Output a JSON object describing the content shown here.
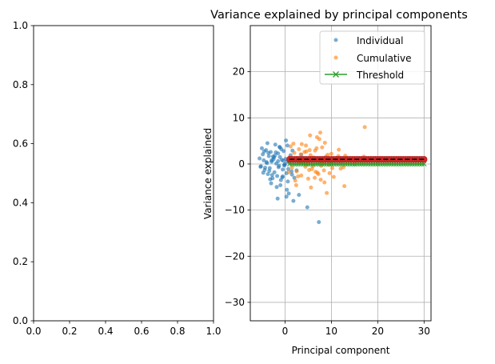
{
  "left_axes": {
    "xlim": [
      0,
      1
    ],
    "ylim": [
      0,
      1
    ],
    "x_ticks": [
      0.0,
      0.2,
      0.4,
      0.6,
      0.8,
      1.0
    ],
    "y_ticks": [
      0.0,
      0.2,
      0.4,
      0.6,
      0.8,
      1.0
    ],
    "x_tick_labels": [
      "0.0",
      "0.2",
      "0.4",
      "0.6",
      "0.8",
      "1.0"
    ],
    "y_tick_labels": [
      "0.0",
      "0.2",
      "0.4",
      "0.6",
      "0.8",
      "1.0"
    ]
  },
  "chart_data": {
    "type": "scatter",
    "title": "Variance explained by principal components",
    "xlabel": "Principal component",
    "ylabel": "Variance explained",
    "xlim": [
      -7.5,
      31.5
    ],
    "ylim": [
      -34,
      30
    ],
    "grid": true,
    "legend_position": "top-right",
    "x_ticks": [
      0,
      10,
      20,
      30
    ],
    "y_ticks": [
      -30,
      -20,
      -10,
      0,
      10,
      20
    ],
    "x_tick_labels": [
      "0",
      "10",
      "20",
      "30"
    ],
    "y_tick_labels": [
      "−30",
      "−20",
      "−10",
      "0",
      "10",
      "20"
    ],
    "series": [
      {
        "name": "Individual",
        "color": "#1f77b4",
        "marker": "dot",
        "x": [
          -5.5,
          -5.2,
          -4.8,
          -4.6,
          -4.4,
          -4.1,
          -3.9,
          -3.7,
          -3.5,
          -3.3,
          -3.1,
          -2.9,
          -2.7,
          -2.5,
          -2.3,
          -2.1,
          -1.9,
          -1.7,
          -1.5,
          -1.3,
          -1.1,
          -0.9,
          -0.7,
          -0.5,
          -0.3,
          -0.1,
          0.1,
          0.3,
          0.5,
          0.7,
          0.9,
          -5.0,
          -4.3,
          -3.6,
          -3.0,
          -2.4,
          -1.8,
          -1.2,
          -0.6,
          0.0,
          0.6,
          1.2,
          -4.7,
          -3.8,
          -2.8,
          -1.6,
          -0.4,
          0.8,
          1.6,
          -4.0,
          -3.2,
          -2.2,
          -1.0,
          0.2,
          1.4,
          -2.0,
          -1.4,
          -0.8,
          0.4,
          1.0,
          1.8,
          2.2,
          2.5,
          3.0,
          3.5,
          -1.5,
          -0.5,
          0.5,
          2.0,
          4.8,
          7.3,
          -2.6,
          -3.4,
          -4.5,
          -5.3,
          -1.1,
          0.3,
          -0.2,
          -2.9,
          1.5,
          2.6
        ],
        "y": [
          1.2,
          -0.5,
          2.1,
          0.8,
          -1.3,
          3.0,
          0.2,
          -2.2,
          1.7,
          -0.9,
          2.6,
          0.5,
          -3.1,
          1.0,
          -1.8,
          4.2,
          0.1,
          -2.6,
          2.3,
          -0.4,
          1.5,
          -3.5,
          0.9,
          -1.2,
          2.8,
          -0.2,
          1.1,
          -2.0,
          0.6,
          -1.1,
          0.3,
          3.4,
          -0.8,
          2.4,
          -4.2,
          1.4,
          -5.0,
          3.7,
          -2.9,
          0.0,
          -3.8,
          1.9,
          -1.9,
          4.5,
          -2.4,
          -7.5,
          0.7,
          -6.4,
          2.9,
          0.4,
          -3.3,
          1.8,
          -4.6,
          5.1,
          -1.6,
          2.5,
          -0.7,
          3.2,
          -5.6,
          1.3,
          -8.0,
          0.9,
          -1.4,
          -6.7,
          2.0,
          0.6,
          -2.7,
          4.0,
          -3.0,
          -9.4,
          -12.6,
          1.6,
          -1.5,
          2.7,
          -0.6,
          3.6,
          -7.1,
          -0.3,
          0.8,
          -2.3,
          1.0
        ]
      },
      {
        "name": "Cumulative",
        "color": "#ff7f0e",
        "marker": "dot",
        "x": [
          1.0,
          1.5,
          2.0,
          2.5,
          3.0,
          3.5,
          4.0,
          4.5,
          5.0,
          5.5,
          6.0,
          6.5,
          7.0,
          7.5,
          8.0,
          8.5,
          9.0,
          9.5,
          10.0,
          10.5,
          11.0,
          11.5,
          12.0,
          1.2,
          2.2,
          3.2,
          4.2,
          5.2,
          6.2,
          7.2,
          8.2,
          9.2,
          10.2,
          11.2,
          12.2,
          0.8,
          1.8,
          2.8,
          3.8,
          4.8,
          5.8,
          6.8,
          7.8,
          8.8,
          9.8,
          2.4,
          3.4,
          4.4,
          5.4,
          6.4,
          7.4,
          8.4,
          3.6,
          5.6,
          7.6,
          9.6,
          11.6,
          13.0,
          14.0,
          15.0,
          17.0,
          18.0,
          4.6,
          6.6,
          8.6,
          12.6,
          6.9,
          7.7,
          2.6,
          3.9,
          9.0,
          5.3,
          12.8,
          17.2
        ],
        "y": [
          1.5,
          -0.8,
          2.4,
          -1.6,
          3.2,
          -2.5,
          0.7,
          4.0,
          -3.2,
          1.9,
          -0.5,
          2.9,
          -1.9,
          0.3,
          3.6,
          -4.0,
          1.1,
          -0.2,
          2.2,
          -2.8,
          0.9,
          1.7,
          -1.0,
          3.8,
          -3.6,
          0.5,
          2.6,
          -1.3,
          1.4,
          -2.2,
          0.1,
          2.0,
          -0.9,
          1.3,
          0.6,
          -1.8,
          4.4,
          -2.7,
          1.0,
          0.0,
          -1.1,
          3.4,
          -0.4,
          1.6,
          0.4,
          -4.6,
          2.1,
          -0.6,
          6.2,
          -3.0,
          5.4,
          -1.4,
          4.3,
          -5.1,
          6.8,
          -2.0,
          3.1,
          1.8,
          1.2,
          -0.1,
          1.6,
          0.8,
          2.7,
          -1.7,
          4.6,
          -0.7,
          5.8,
          -3.4,
          1.3,
          0.2,
          -6.3,
          3.0,
          -4.8,
          8.0
        ],
        "note": "scattered orange points; the large filled red circles near y=1 cover x from 1 to 30"
      },
      {
        "name": "Threshold",
        "color": "#2ca02c",
        "marker": "x",
        "line": true,
        "x": [
          1,
          1.5,
          2,
          2.5,
          3,
          3.5,
          4,
          4.5,
          5,
          5.5,
          6,
          6.5,
          7,
          7.5,
          8,
          8.5,
          9,
          9.5,
          10,
          10.5,
          11,
          11.5,
          12,
          12.5,
          13,
          13.5,
          14,
          14.5,
          15,
          15.5,
          16,
          16.5,
          17,
          17.5,
          18,
          18.5,
          19,
          19.5,
          20,
          20.5,
          21,
          21.5,
          22,
          22.5,
          23,
          23.5,
          24,
          24.5,
          25,
          25.5,
          26,
          26.5,
          27,
          27.5,
          28,
          28.5,
          29,
          29.5,
          30
        ],
        "y": [
          0,
          0,
          0,
          0,
          0,
          0,
          0,
          0,
          0,
          0,
          0,
          0,
          0,
          0,
          0,
          0,
          0,
          0,
          0,
          0,
          0,
          0,
          0,
          0,
          0,
          0,
          0,
          0,
          0,
          0,
          0,
          0,
          0,
          0,
          0,
          0,
          0,
          0,
          0,
          0,
          0,
          0,
          0,
          0,
          0,
          0,
          0,
          0,
          0,
          0,
          0,
          0,
          0,
          0,
          0,
          0,
          0,
          0,
          0
        ]
      }
    ],
    "overlay": {
      "red_markers": {
        "color": "#d62728",
        "x": [
          1,
          1.5,
          2,
          2.5,
          3,
          3.5,
          4,
          4.5,
          5,
          5.5,
          6,
          6.5,
          7,
          7.5,
          8,
          8.5,
          9,
          9.5,
          10,
          10.5,
          11,
          11.5,
          12,
          12.5,
          13,
          13.5,
          14,
          14.5,
          15,
          15.5,
          16,
          16.5,
          17,
          17.5,
          18,
          18.5,
          19,
          19.5,
          20,
          20.5,
          21,
          21.5,
          22,
          22.5,
          23,
          23.5,
          24,
          24.5,
          25,
          25.5,
          26,
          26.5,
          27,
          27.5,
          28,
          28.5,
          29,
          29.5,
          30
        ],
        "y": 1
      },
      "dashed_line": {
        "color": "#000000",
        "x": [
          1,
          30
        ],
        "y": 1
      }
    }
  }
}
